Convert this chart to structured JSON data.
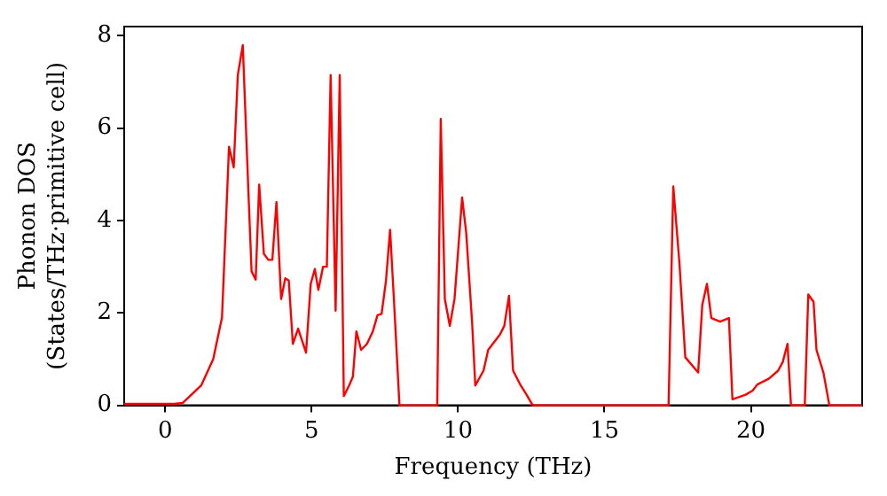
{
  "chart_data": {
    "type": "line",
    "xlabel": "Frequency (THz)",
    "ylabel": "Phonon DOS\n(States/THz·primitive cell)",
    "xlim": [
      -1.4,
      23.8
    ],
    "ylim": [
      0,
      8.2
    ],
    "xticks": [
      0,
      5,
      10,
      15,
      20
    ],
    "yticks": [
      0,
      2,
      4,
      6,
      8
    ],
    "grid": false,
    "legend": false,
    "marker": "none",
    "line_style": "solid",
    "series": [
      {
        "color": "#ff0000",
        "x": [
          -1.4,
          0.3,
          0.6,
          1.23,
          1.64,
          1.94,
          2.18,
          2.34,
          2.48,
          2.65,
          2.85,
          2.95,
          3.09,
          3.21,
          3.37,
          3.52,
          3.66,
          3.8,
          3.96,
          4.1,
          4.22,
          4.36,
          4.54,
          4.81,
          4.97,
          5.11,
          5.23,
          5.39,
          5.52,
          5.65,
          5.82,
          5.96,
          6.1,
          6.28,
          6.41,
          6.53,
          6.69,
          6.89,
          7.09,
          7.25,
          7.39,
          7.54,
          7.68,
          7.82,
          8.0,
          9.29,
          9.41,
          9.55,
          9.72,
          9.88,
          10.14,
          10.28,
          10.48,
          10.59,
          10.87,
          11.03,
          11.43,
          11.58,
          11.74,
          11.88,
          12.14,
          12.34,
          12.55,
          17.19,
          17.35,
          17.56,
          17.76,
          18.2,
          18.34,
          18.5,
          18.65,
          18.95,
          19.25,
          19.37,
          19.82,
          20.06,
          20.22,
          20.62,
          20.93,
          21.09,
          21.25,
          21.37,
          21.84,
          21.96,
          22.14,
          22.24,
          22.48,
          22.68,
          23.8
        ],
        "values": [
          0.03,
          0.03,
          0.05,
          0.43,
          1.0,
          1.9,
          5.6,
          5.15,
          7.15,
          7.8,
          4.5,
          2.9,
          2.72,
          4.78,
          3.28,
          3.15,
          3.15,
          4.4,
          2.3,
          2.75,
          2.7,
          1.33,
          1.66,
          1.14,
          2.63,
          2.95,
          2.5,
          3.0,
          3.0,
          7.15,
          2.05,
          7.15,
          0.2,
          0.43,
          0.62,
          1.6,
          1.2,
          1.33,
          1.6,
          1.95,
          1.98,
          2.7,
          3.8,
          2.18,
          0,
          0,
          6.2,
          2.3,
          1.72,
          2.3,
          4.5,
          3.73,
          1.8,
          0.43,
          0.75,
          1.2,
          1.53,
          1.72,
          2.37,
          0.75,
          0.43,
          0.23,
          0,
          0,
          4.74,
          3.08,
          1.04,
          0.71,
          2.17,
          2.63,
          1.89,
          1.81,
          1.89,
          0.13,
          0.23,
          0.32,
          0.45,
          0.58,
          0.75,
          0.94,
          1.33,
          0,
          0,
          2.4,
          2.24,
          1.2,
          0.7,
          0,
          0
        ]
      }
    ]
  }
}
